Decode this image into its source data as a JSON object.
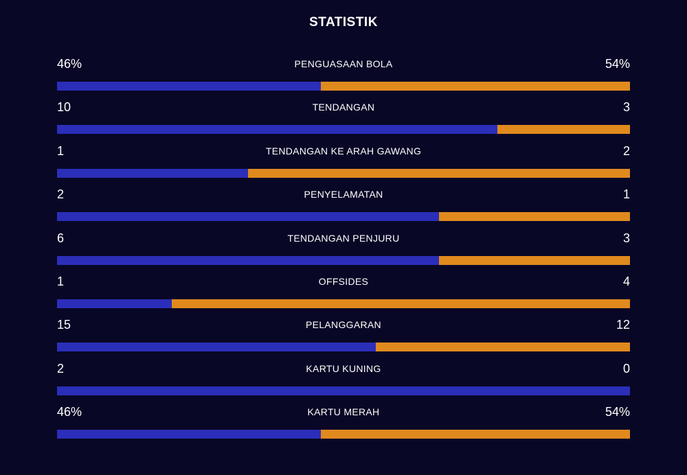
{
  "title": "STATISTIK",
  "colors": {
    "background": "#080726",
    "home_bar": "#2b2eb8",
    "away_bar": "#e08a1e",
    "text": "#ffffff"
  },
  "stats": [
    {
      "name": "PENGUASAAN BOLA",
      "home_label": "46%",
      "away_label": "54%",
      "home_share": 0.46
    },
    {
      "name": "TENDANGAN",
      "home_label": "10",
      "away_label": "3",
      "home_share": 0.769
    },
    {
      "name": "TENDANGAN KE ARAH GAWANG",
      "home_label": "1",
      "away_label": "2",
      "home_share": 0.333
    },
    {
      "name": "PENYELAMATAN",
      "home_label": "2",
      "away_label": "1",
      "home_share": 0.667
    },
    {
      "name": "TENDANGAN PENJURU",
      "home_label": "6",
      "away_label": "3",
      "home_share": 0.667
    },
    {
      "name": "OFFSIDES",
      "home_label": "1",
      "away_label": "4",
      "home_share": 0.2
    },
    {
      "name": "PELANGGARAN",
      "home_label": "15",
      "away_label": "12",
      "home_share": 0.556
    },
    {
      "name": "KARTU KUNING",
      "home_label": "2",
      "away_label": "0",
      "home_share": 1.0
    },
    {
      "name": "KARTU MERAH",
      "home_label": "46%",
      "away_label": "54%",
      "home_share": 0.46
    }
  ]
}
